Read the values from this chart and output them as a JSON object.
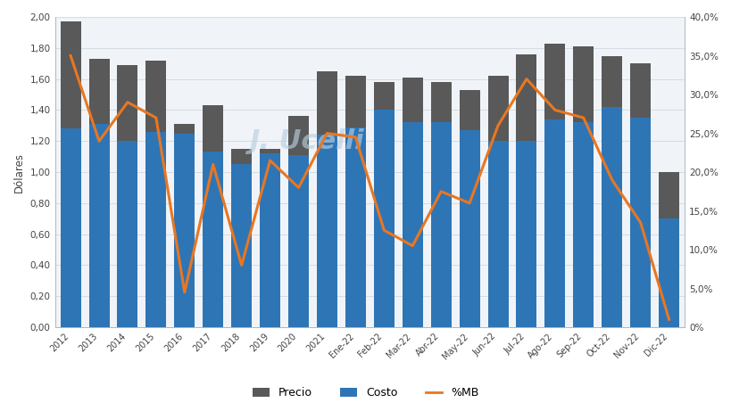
{
  "categories": [
    "2012",
    "2013",
    "2014",
    "2015",
    "2016",
    "2017",
    "2018",
    "2019",
    "2020",
    "2021",
    "Ene-22",
    "Feb-22",
    "Mar-22",
    "Abr-22",
    "May-22",
    "Jun-22",
    "Jul-22",
    "Ago-22",
    "Sep-22",
    "Oct-22",
    "Nov-22",
    "Dic-22"
  ],
  "precio": [
    1.97,
    1.73,
    1.69,
    1.72,
    1.31,
    1.43,
    1.15,
    1.15,
    1.36,
    1.65,
    1.62,
    1.58,
    1.61,
    1.58,
    1.53,
    1.62,
    1.76,
    1.83,
    1.81,
    1.75,
    1.7,
    1.0
  ],
  "costo": [
    1.28,
    1.31,
    1.2,
    1.26,
    1.25,
    1.13,
    1.05,
    1.12,
    1.11,
    1.24,
    1.29,
    1.4,
    1.32,
    1.32,
    1.27,
    1.2,
    1.2,
    1.34,
    1.32,
    1.42,
    1.35,
    0.7
  ],
  "pct_mb": [
    35.0,
    24.0,
    29.0,
    27.0,
    4.5,
    21.0,
    8.0,
    21.5,
    18.0,
    25.0,
    24.5,
    12.5,
    10.5,
    17.5,
    16.0,
    26.0,
    32.0,
    28.0,
    27.0,
    19.0,
    13.5,
    1.0
  ],
  "bar_color_precio": "#595959",
  "bar_color_costo": "#2E75B6",
  "line_color_mb": "#E87722",
  "ylabel_left": "Dólares",
  "ylim_left": [
    0.0,
    2.0
  ],
  "ylim_right": [
    0.0,
    40.0
  ],
  "yticks_left": [
    0.0,
    0.2,
    0.4,
    0.6,
    0.8,
    1.0,
    1.2,
    1.4,
    1.6,
    1.8,
    2.0
  ],
  "yticks_right": [
    0.0,
    5.0,
    10.0,
    15.0,
    20.0,
    25.0,
    30.0,
    35.0,
    40.0
  ],
  "yticks_right_labels": [
    "0%",
    "5,0%",
    "10,0%",
    "15,0%",
    "20,0%",
    "25,0%",
    "30,0%",
    "35,0%",
    "40,0%"
  ],
  "legend_labels": [
    "Precio",
    "Costo",
    "%MB"
  ],
  "background_color": "#ffffff",
  "plot_bg_color": "#f0f4f8",
  "watermark_text": "J. Ucelli",
  "grid_color": "#d0d8e0",
  "spine_color": "#b0b8c0"
}
